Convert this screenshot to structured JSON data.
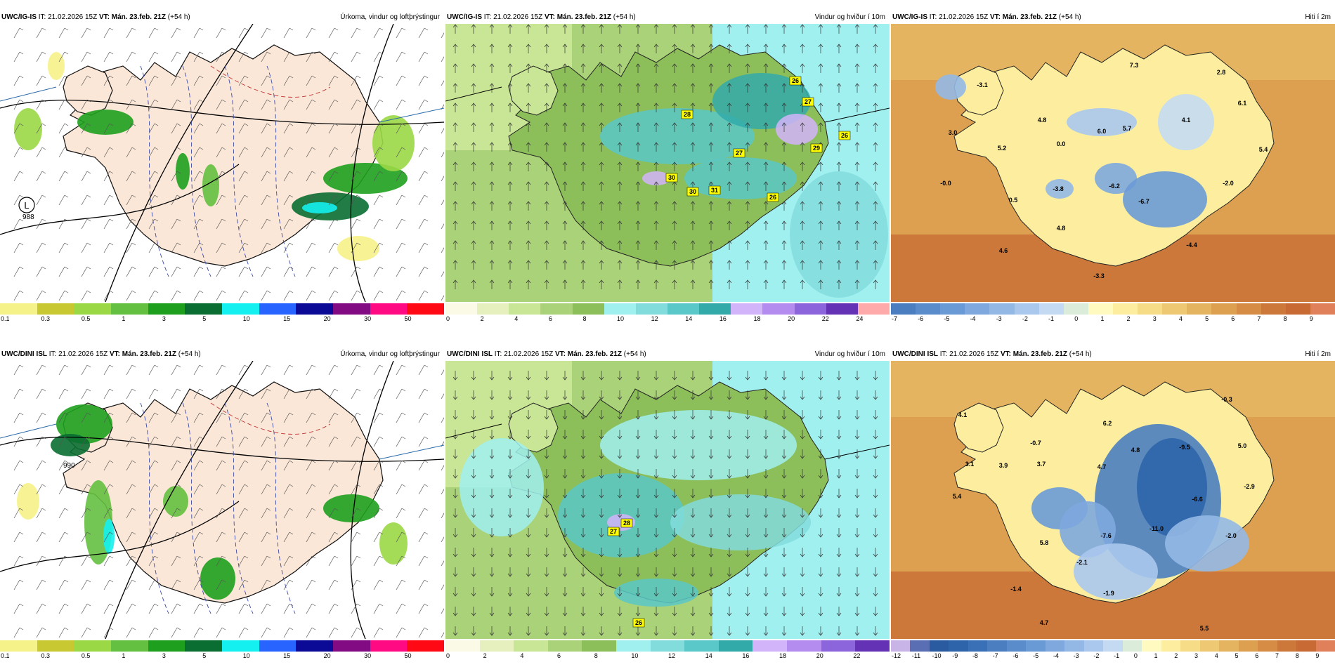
{
  "panels": [
    {
      "model": "UWC/IG-IS",
      "it": "IT: 21.02.2026 15Z",
      "vt": "VT: Mán. 23.feb. 21Z",
      "lead": "(+54 h)",
      "title": "Úrkoma, vindur og loftþrýstingur",
      "colorbar": {
        "ticks": [
          "0.1",
          "0.3",
          "0.5",
          "1",
          "3",
          "5",
          "10",
          "15",
          "20",
          "30",
          "50"
        ],
        "colors": [
          "#f6f28a",
          "#c8c832",
          "#9ad846",
          "#64c040",
          "#1ea01e",
          "#0a6e32",
          "#14f0f0",
          "#2864ff",
          "#0a0a96",
          "#820a82",
          "#ff0a82",
          "#ff0a14"
        ]
      },
      "labels": {
        "low": "L",
        "low_value": "988"
      }
    },
    {
      "model": "UWC/IG-IS",
      "it": "IT: 21.02.2026 15Z",
      "vt": "VT: Mán. 23.feb. 21Z",
      "lead": "(+54 h)",
      "title": "Vindur og hviður í 10m",
      "colorbar": {
        "ticks": [
          "0",
          "2",
          "4",
          "6",
          "8",
          "10",
          "12",
          "14",
          "16",
          "18",
          "20",
          "22",
          "24"
        ],
        "colors": [
          "#fafae6",
          "#e6f0be",
          "#c8e696",
          "#aad278",
          "#8cbe5a",
          "#a0f0f0",
          "#82dcdc",
          "#5ac8c8",
          "#32aaaa",
          "#d2b4fa",
          "#b48cf0",
          "#8c64dc",
          "#6432b4",
          "#ffaaaa"
        ]
      },
      "gusts": [
        "26",
        "27",
        "28",
        "27",
        "26",
        "29",
        "30",
        "31",
        "30",
        "26"
      ]
    },
    {
      "model": "UWC/IG-IS",
      "it": "IT: 21.02.2026 15Z",
      "vt": "VT: Mán. 23.feb. 21Z",
      "lead": "(+54 h)",
      "title": "Hiti í 2m",
      "colorbar": {
        "ticks": [
          "-7",
          "-6",
          "-5",
          "-4",
          "-3",
          "-2",
          "-1",
          "0",
          "1",
          "2",
          "3",
          "4",
          "5",
          "6",
          "7",
          "8",
          "9"
        ],
        "colors": [
          "#4a7ec0",
          "#5a8ccc",
          "#6a9ad6",
          "#7ea8de",
          "#94b8e6",
          "#aac8ee",
          "#c4daf2",
          "#dcecda",
          "#fffac0",
          "#fcee9e",
          "#f6dc86",
          "#eec872",
          "#e4b460",
          "#dca050",
          "#d68c44",
          "#cc783a",
          "#c86a34",
          "#e0805a"
        ]
      },
      "temps": [
        "-3.1",
        "7.3",
        "2.8",
        "4.8",
        "6.1",
        "3.0",
        "6.0",
        "5.7",
        "4.1",
        "5.2",
        "0.0",
        "5.4",
        "-0.0",
        "-3.8",
        "-6.2",
        "-2.0",
        "0.5",
        "-6.7",
        "4.8",
        "4.6",
        "-4.4",
        "-3.3"
      ]
    },
    {
      "model": "UWC/DINI ISL",
      "it": "IT: 21.02.2026 15Z",
      "vt": "VT: Mán. 23.feb. 21Z",
      "lead": "(+54 h)",
      "title": "Úrkoma, vindur og loftþrýstingur",
      "colorbar": {
        "ticks": [
          "0.1",
          "0.3",
          "0.5",
          "1",
          "3",
          "5",
          "10",
          "15",
          "20",
          "30",
          "50"
        ],
        "colors": [
          "#f6f28a",
          "#c8c832",
          "#9ad846",
          "#64c040",
          "#1ea01e",
          "#0a6e32",
          "#14f0f0",
          "#2864ff",
          "#0a0a96",
          "#820a82",
          "#ff0a82",
          "#ff0a14"
        ]
      },
      "labels": {
        "low_value": "990"
      }
    },
    {
      "model": "UWC/DINI ISL",
      "it": "IT: 21.02.2026 15Z",
      "vt": "VT: Mán. 23.feb. 21Z",
      "lead": "(+54 h)",
      "title": "Vindur og hviður í 10m",
      "colorbar": {
        "ticks": [
          "0",
          "2",
          "4",
          "6",
          "8",
          "10",
          "12",
          "14",
          "16",
          "18",
          "20",
          "22"
        ],
        "colors": [
          "#fafae6",
          "#e6f0be",
          "#c8e696",
          "#aad278",
          "#8cbe5a",
          "#a0f0f0",
          "#82dcdc",
          "#5ac8c8",
          "#32aaaa",
          "#d2b4fa",
          "#b48cf0",
          "#8c64dc",
          "#6432b4"
        ]
      },
      "gusts": [
        "28",
        "27",
        "26"
      ]
    },
    {
      "model": "UWC/DINI ISL",
      "it": "IT: 21.02.2026 15Z",
      "vt": "VT: Mán. 23.feb. 21Z",
      "lead": "(+54 h)",
      "title": "Hiti í 2m",
      "colorbar": {
        "ticks": [
          "-12",
          "-11",
          "-10",
          "-9",
          "-8",
          "-7",
          "-6",
          "-5",
          "-4",
          "-3",
          "-2",
          "-1",
          "0",
          "1",
          "2",
          "3",
          "4",
          "5",
          "6",
          "7",
          "8",
          "9"
        ],
        "colors": [
          "#c8b4e6",
          "#5a6eb4",
          "#2a5aa0",
          "#2e64aa",
          "#3a70b6",
          "#4a7ec0",
          "#5a8ccc",
          "#6a9ad6",
          "#7ea8de",
          "#94b8e6",
          "#aac8ee",
          "#c4daf2",
          "#dcecda",
          "#fffac0",
          "#fcee9e",
          "#f6dc86",
          "#eec872",
          "#e4b460",
          "#dca050",
          "#d68c44",
          "#cc783a",
          "#c86a34",
          "#e0805a"
        ]
      },
      "temps": [
        "-0.3",
        "4.1",
        "6.2",
        "-0.7",
        "4.8",
        "-9.5",
        "5.0",
        "3.1",
        "3.9",
        "3.7",
        "4.7",
        "-2.9",
        "5.4",
        "-6.6",
        "-7.6",
        "-11.0",
        "5.8",
        "-2.0",
        "-2.1",
        "-1.4",
        "-1.9",
        "4.7",
        "5.5"
      ]
    }
  ]
}
